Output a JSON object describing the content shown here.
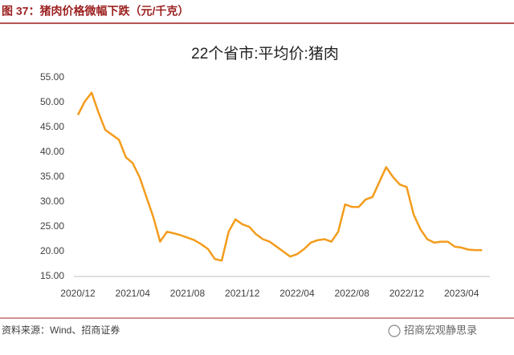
{
  "header": "图 37：猪肉价格微幅下跌（元/千克）",
  "source": "资料来源：Wind、招商证券",
  "watermark": "招商宏观静思录",
  "chart_data": {
    "type": "line",
    "title": "22个省市:平均价:猪肉",
    "categories": [
      "2020/12",
      null,
      null,
      null,
      null,
      null,
      null,
      null,
      "2021/04",
      null,
      null,
      null,
      null,
      null,
      null,
      null,
      "2021/08",
      null,
      null,
      null,
      null,
      null,
      null,
      null,
      "2021/12",
      null,
      null,
      null,
      null,
      null,
      null,
      null,
      "2022/04",
      null,
      null,
      null,
      null,
      null,
      null,
      null,
      "2022/08",
      null,
      null,
      null,
      null,
      null,
      null,
      null,
      "2022/12",
      null,
      null,
      null,
      null,
      null,
      null,
      null,
      "2023/04",
      null,
      null,
      null
    ],
    "series": [
      {
        "name": "22个省市:平均价:猪肉",
        "color": "#f39c1d",
        "values": [
          47.5,
          50.2,
          52.0,
          48.0,
          44.5,
          43.5,
          42.5,
          39.0,
          37.8,
          35.0,
          31.0,
          27.0,
          22.0,
          24.0,
          23.7,
          23.3,
          22.8,
          22.3,
          21.5,
          20.5,
          18.5,
          18.2,
          24.0,
          26.5,
          25.5,
          25.0,
          23.5,
          22.5,
          22.0,
          21.0,
          20.0,
          19.0,
          19.5,
          20.5,
          21.8,
          22.3,
          22.5,
          22.0,
          24.0,
          29.5,
          29.0,
          29.0,
          30.5,
          31.0,
          34.0,
          37.0,
          35.0,
          33.5,
          33.0,
          27.5,
          24.5,
          22.5,
          21.8,
          22.0,
          22.0,
          21.0,
          20.8,
          20.4,
          20.3,
          20.3
        ]
      }
    ],
    "ylim": [
      15,
      55
    ],
    "yticks": [
      {
        "value": 15,
        "label": "15.00"
      },
      {
        "value": 20,
        "label": "20.00"
      },
      {
        "value": 25,
        "label": "25.00"
      },
      {
        "value": 30,
        "label": "30.00"
      },
      {
        "value": 35,
        "label": "35.00"
      },
      {
        "value": 40,
        "label": "40.00"
      },
      {
        "value": 45,
        "label": "45.00"
      },
      {
        "value": 50,
        "label": "50.00"
      },
      {
        "value": 55,
        "label": "55.00"
      }
    ],
    "grid": false
  }
}
